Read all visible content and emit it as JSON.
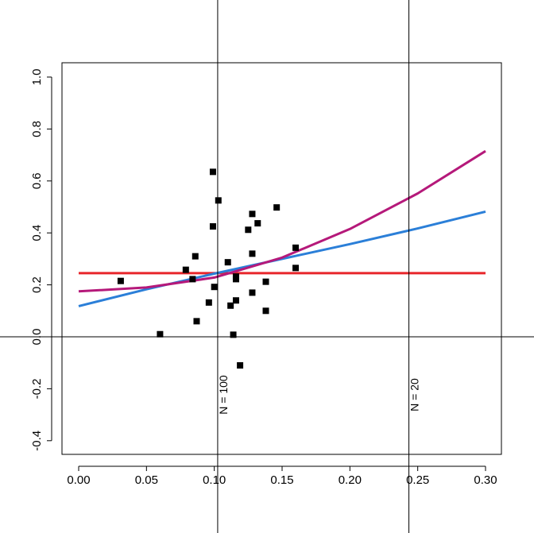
{
  "chart_data": {
    "type": "scatter",
    "title": "",
    "xlabel": "",
    "ylabel": "",
    "xlim": [
      -0.013,
      0.313
    ],
    "ylim": [
      -0.45,
      1.03
    ],
    "x_ticks": [
      0.0,
      0.05,
      0.1,
      0.15,
      0.2,
      0.25,
      0.3
    ],
    "x_tick_labels": [
      "0.00",
      "0.05",
      "0.10",
      "0.15",
      "0.20",
      "0.25",
      "0.30"
    ],
    "y_ticks": [
      -0.4,
      -0.2,
      0.0,
      0.2,
      0.4,
      0.6,
      0.8,
      1.0
    ],
    "y_tick_labels": [
      "-0.4",
      "-0.2",
      "0.0",
      "0.2",
      "0.4",
      "0.6",
      "0.8",
      "1.0"
    ],
    "grid": false,
    "points": [
      {
        "x": 0.031,
        "y": 0.215
      },
      {
        "x": 0.06,
        "y": 0.01
      },
      {
        "x": 0.079,
        "y": 0.258
      },
      {
        "x": 0.084,
        "y": 0.222
      },
      {
        "x": 0.086,
        "y": 0.31
      },
      {
        "x": 0.087,
        "y": 0.06
      },
      {
        "x": 0.096,
        "y": 0.132
      },
      {
        "x": 0.099,
        "y": 0.635
      },
      {
        "x": 0.099,
        "y": 0.425
      },
      {
        "x": 0.1,
        "y": 0.192
      },
      {
        "x": 0.103,
        "y": 0.525
      },
      {
        "x": 0.11,
        "y": 0.287
      },
      {
        "x": 0.112,
        "y": 0.12
      },
      {
        "x": 0.114,
        "y": 0.008
      },
      {
        "x": 0.116,
        "y": 0.232
      },
      {
        "x": 0.116,
        "y": 0.222
      },
      {
        "x": 0.116,
        "y": 0.14
      },
      {
        "x": 0.119,
        "y": -0.11
      },
      {
        "x": 0.125,
        "y": 0.412
      },
      {
        "x": 0.128,
        "y": 0.473
      },
      {
        "x": 0.128,
        "y": 0.32
      },
      {
        "x": 0.128,
        "y": 0.17
      },
      {
        "x": 0.132,
        "y": 0.437
      },
      {
        "x": 0.138,
        "y": 0.212
      },
      {
        "x": 0.138,
        "y": 0.1
      },
      {
        "x": 0.146,
        "y": 0.498
      },
      {
        "x": 0.16,
        "y": 0.343
      },
      {
        "x": 0.16,
        "y": 0.265
      }
    ],
    "series": [
      {
        "color": "#e8262b",
        "x": [
          0.0,
          0.3
        ],
        "y": [
          0.245,
          0.245
        ]
      },
      {
        "color": "#2b7fd8",
        "x": [
          0.0,
          0.05,
          0.1,
          0.15,
          0.2,
          0.25,
          0.3
        ],
        "y": [
          0.118,
          0.183,
          0.243,
          0.3,
          0.357,
          0.417,
          0.482
        ]
      },
      {
        "color": "#b5197a",
        "x": [
          0.0,
          0.05,
          0.1,
          0.15,
          0.2,
          0.25,
          0.3
        ],
        "y": [
          0.175,
          0.19,
          0.228,
          0.305,
          0.415,
          0.552,
          0.715
        ]
      }
    ],
    "reference_lines": [
      {
        "orientation": "vertical",
        "x": 0.1025,
        "label": "N = 100"
      },
      {
        "orientation": "vertical",
        "x": 0.2435,
        "label": "N = 20"
      },
      {
        "orientation": "horizontal",
        "y": 0.0
      }
    ]
  }
}
